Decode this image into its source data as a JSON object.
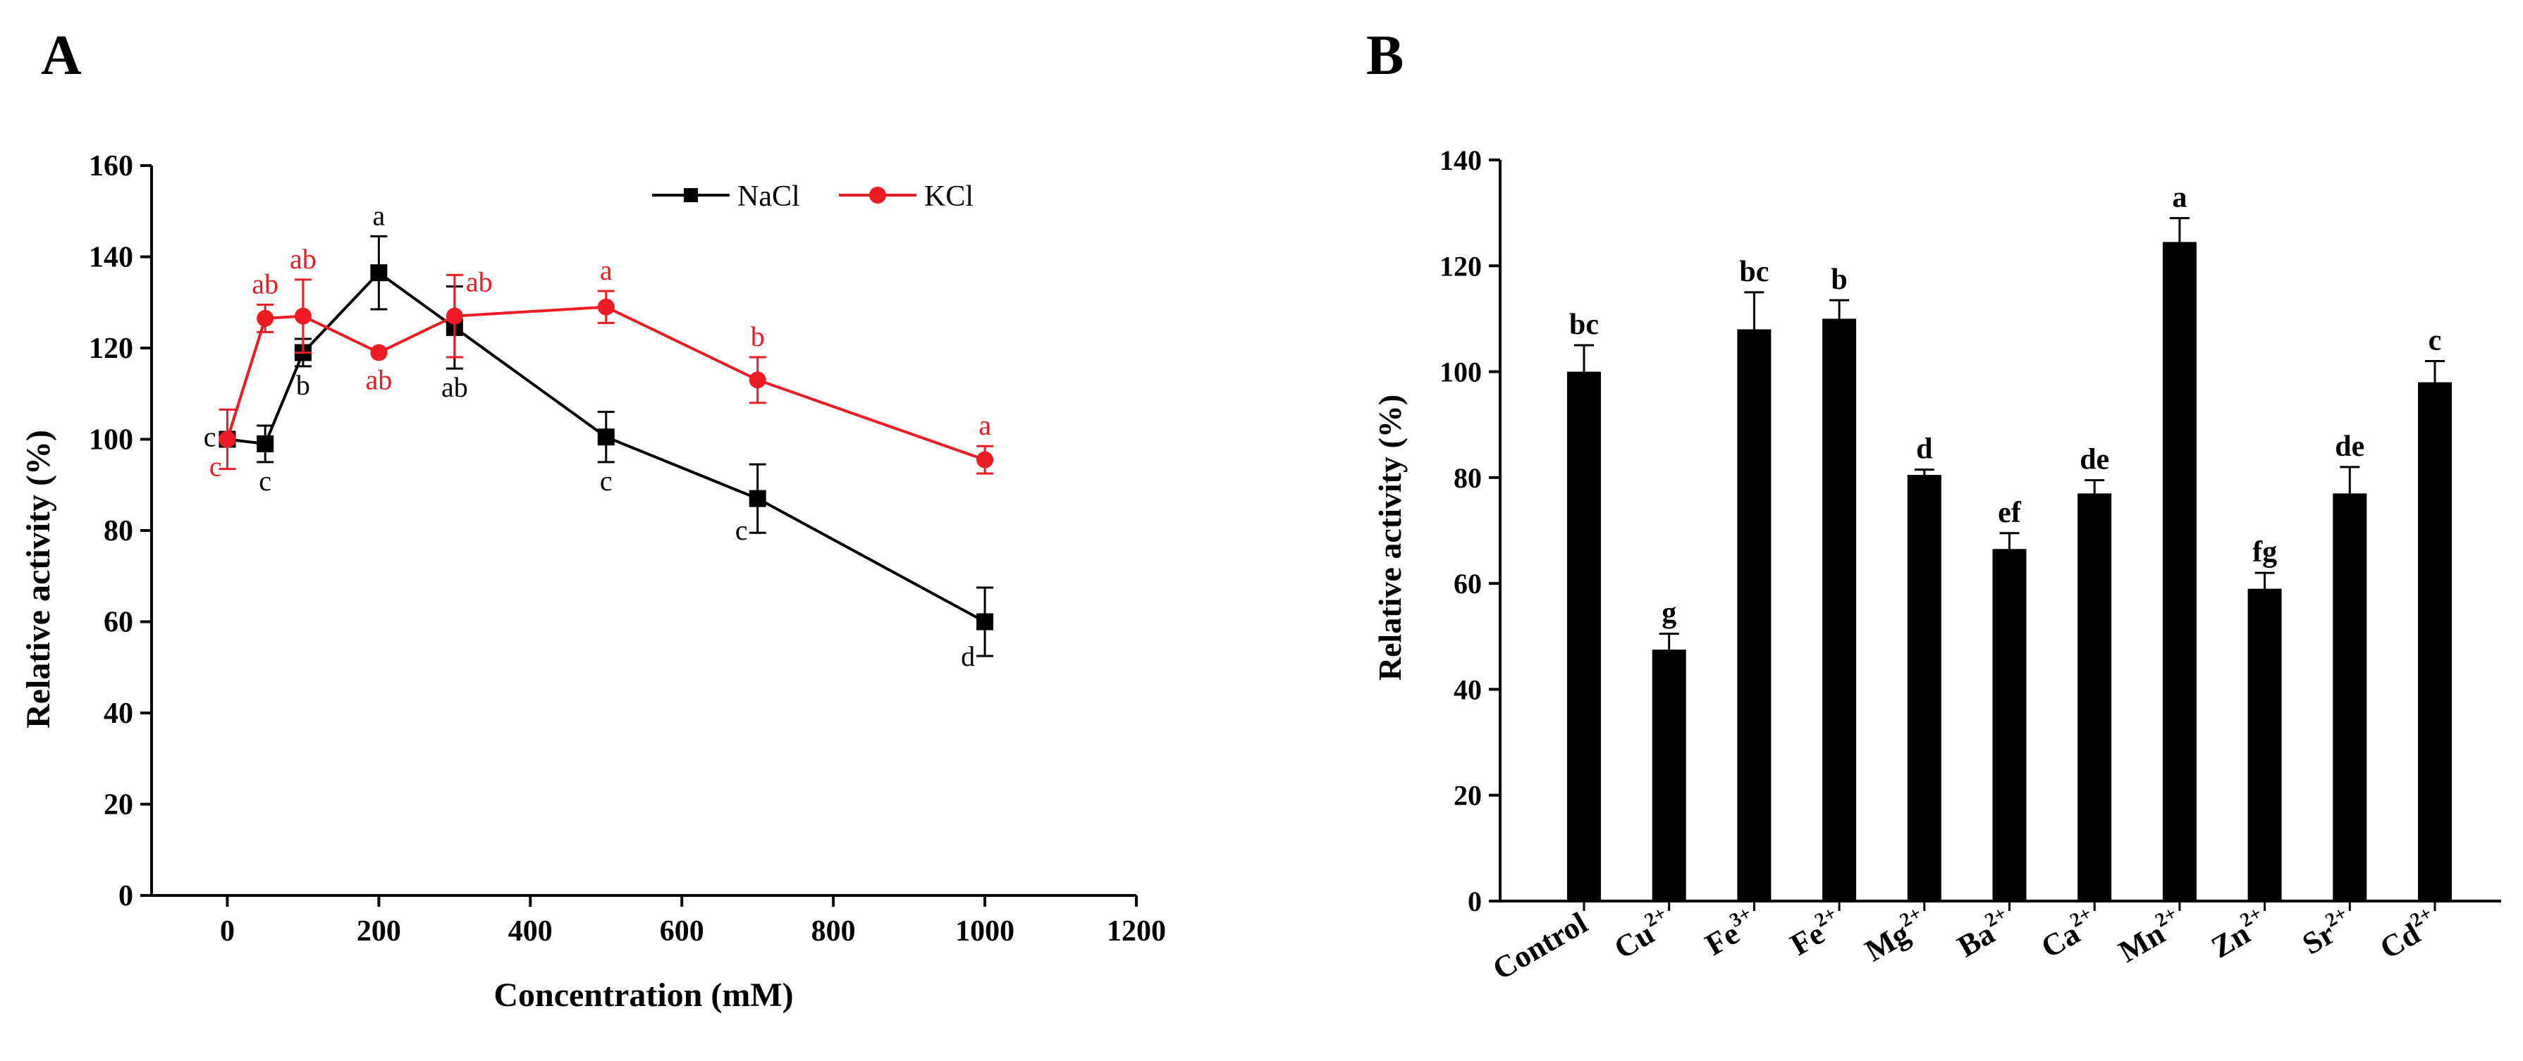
{
  "chart_data": [
    {
      "panel": "A",
      "type": "line",
      "xlabel": "Concentration (mM)",
      "ylabel": "Relative activity (%)",
      "xlim": [
        -100,
        1200
      ],
      "ylim": [
        0,
        160
      ],
      "xticks": [
        "0",
        "200",
        "400",
        "600",
        "800",
        "1000",
        "1200"
      ],
      "yticks": [
        "0",
        "20",
        "40",
        "60",
        "80",
        "100",
        "120",
        "140",
        "160"
      ],
      "legend_position": "top-right",
      "series": [
        {
          "name": "NaCl",
          "color": "#000000",
          "marker": "square",
          "x": [
            0,
            50,
            100,
            200,
            300,
            500,
            700,
            1000
          ],
          "y": [
            100,
            99,
            119,
            136.5,
            124.5,
            100.5,
            87,
            60
          ],
          "err": [
            0,
            4,
            3,
            8,
            9,
            5.5,
            7.5,
            7.5
          ],
          "letters": [
            "c",
            "c",
            "b",
            "a",
            "ab",
            "c",
            "c",
            "d"
          ]
        },
        {
          "name": "KCl",
          "color": "#ed1c24",
          "marker": "circle",
          "x": [
            0,
            50,
            100,
            200,
            300,
            500,
            700,
            1000
          ],
          "y": [
            100,
            126.5,
            127,
            119,
            127,
            129,
            113,
            95.5
          ],
          "err": [
            6.5,
            3,
            8,
            0,
            9,
            3.5,
            5,
            3
          ],
          "letters": [
            "c",
            "ab",
            "ab",
            "ab",
            "ab",
            "a",
            "b",
            "a"
          ]
        }
      ]
    },
    {
      "panel": "B",
      "type": "bar",
      "ylabel": "Relative activity (%)",
      "ylim": [
        0,
        140
      ],
      "yticks": [
        "0",
        "20",
        "40",
        "60",
        "80",
        "100",
        "120",
        "140"
      ],
      "categories": [
        {
          "base": "Control",
          "sup": ""
        },
        {
          "base": "Cu",
          "sup": "2+"
        },
        {
          "base": "Fe",
          "sup": "3+"
        },
        {
          "base": "Fe",
          "sup": "2+"
        },
        {
          "base": "Mg",
          "sup": "2+"
        },
        {
          "base": "Ba",
          "sup": "2+"
        },
        {
          "base": "Ca",
          "sup": "2+"
        },
        {
          "base": "Mn",
          "sup": "2+"
        },
        {
          "base": "Zn",
          "sup": "2+"
        },
        {
          "base": "Sr",
          "sup": "2+"
        },
        {
          "base": "Cd",
          "sup": "2+"
        }
      ],
      "values": [
        100,
        47.5,
        108,
        110,
        80.5,
        66.5,
        77,
        124.5,
        59,
        77,
        98
      ],
      "errors": [
        5,
        3,
        7,
        3.5,
        1,
        3,
        2.5,
        4.5,
        3,
        5,
        4
      ],
      "letters": [
        "bc",
        "g",
        "bc",
        "b",
        "d",
        "ef",
        "de",
        "a",
        "fg",
        "de",
        "c"
      ],
      "bar_color": "#000000"
    }
  ]
}
